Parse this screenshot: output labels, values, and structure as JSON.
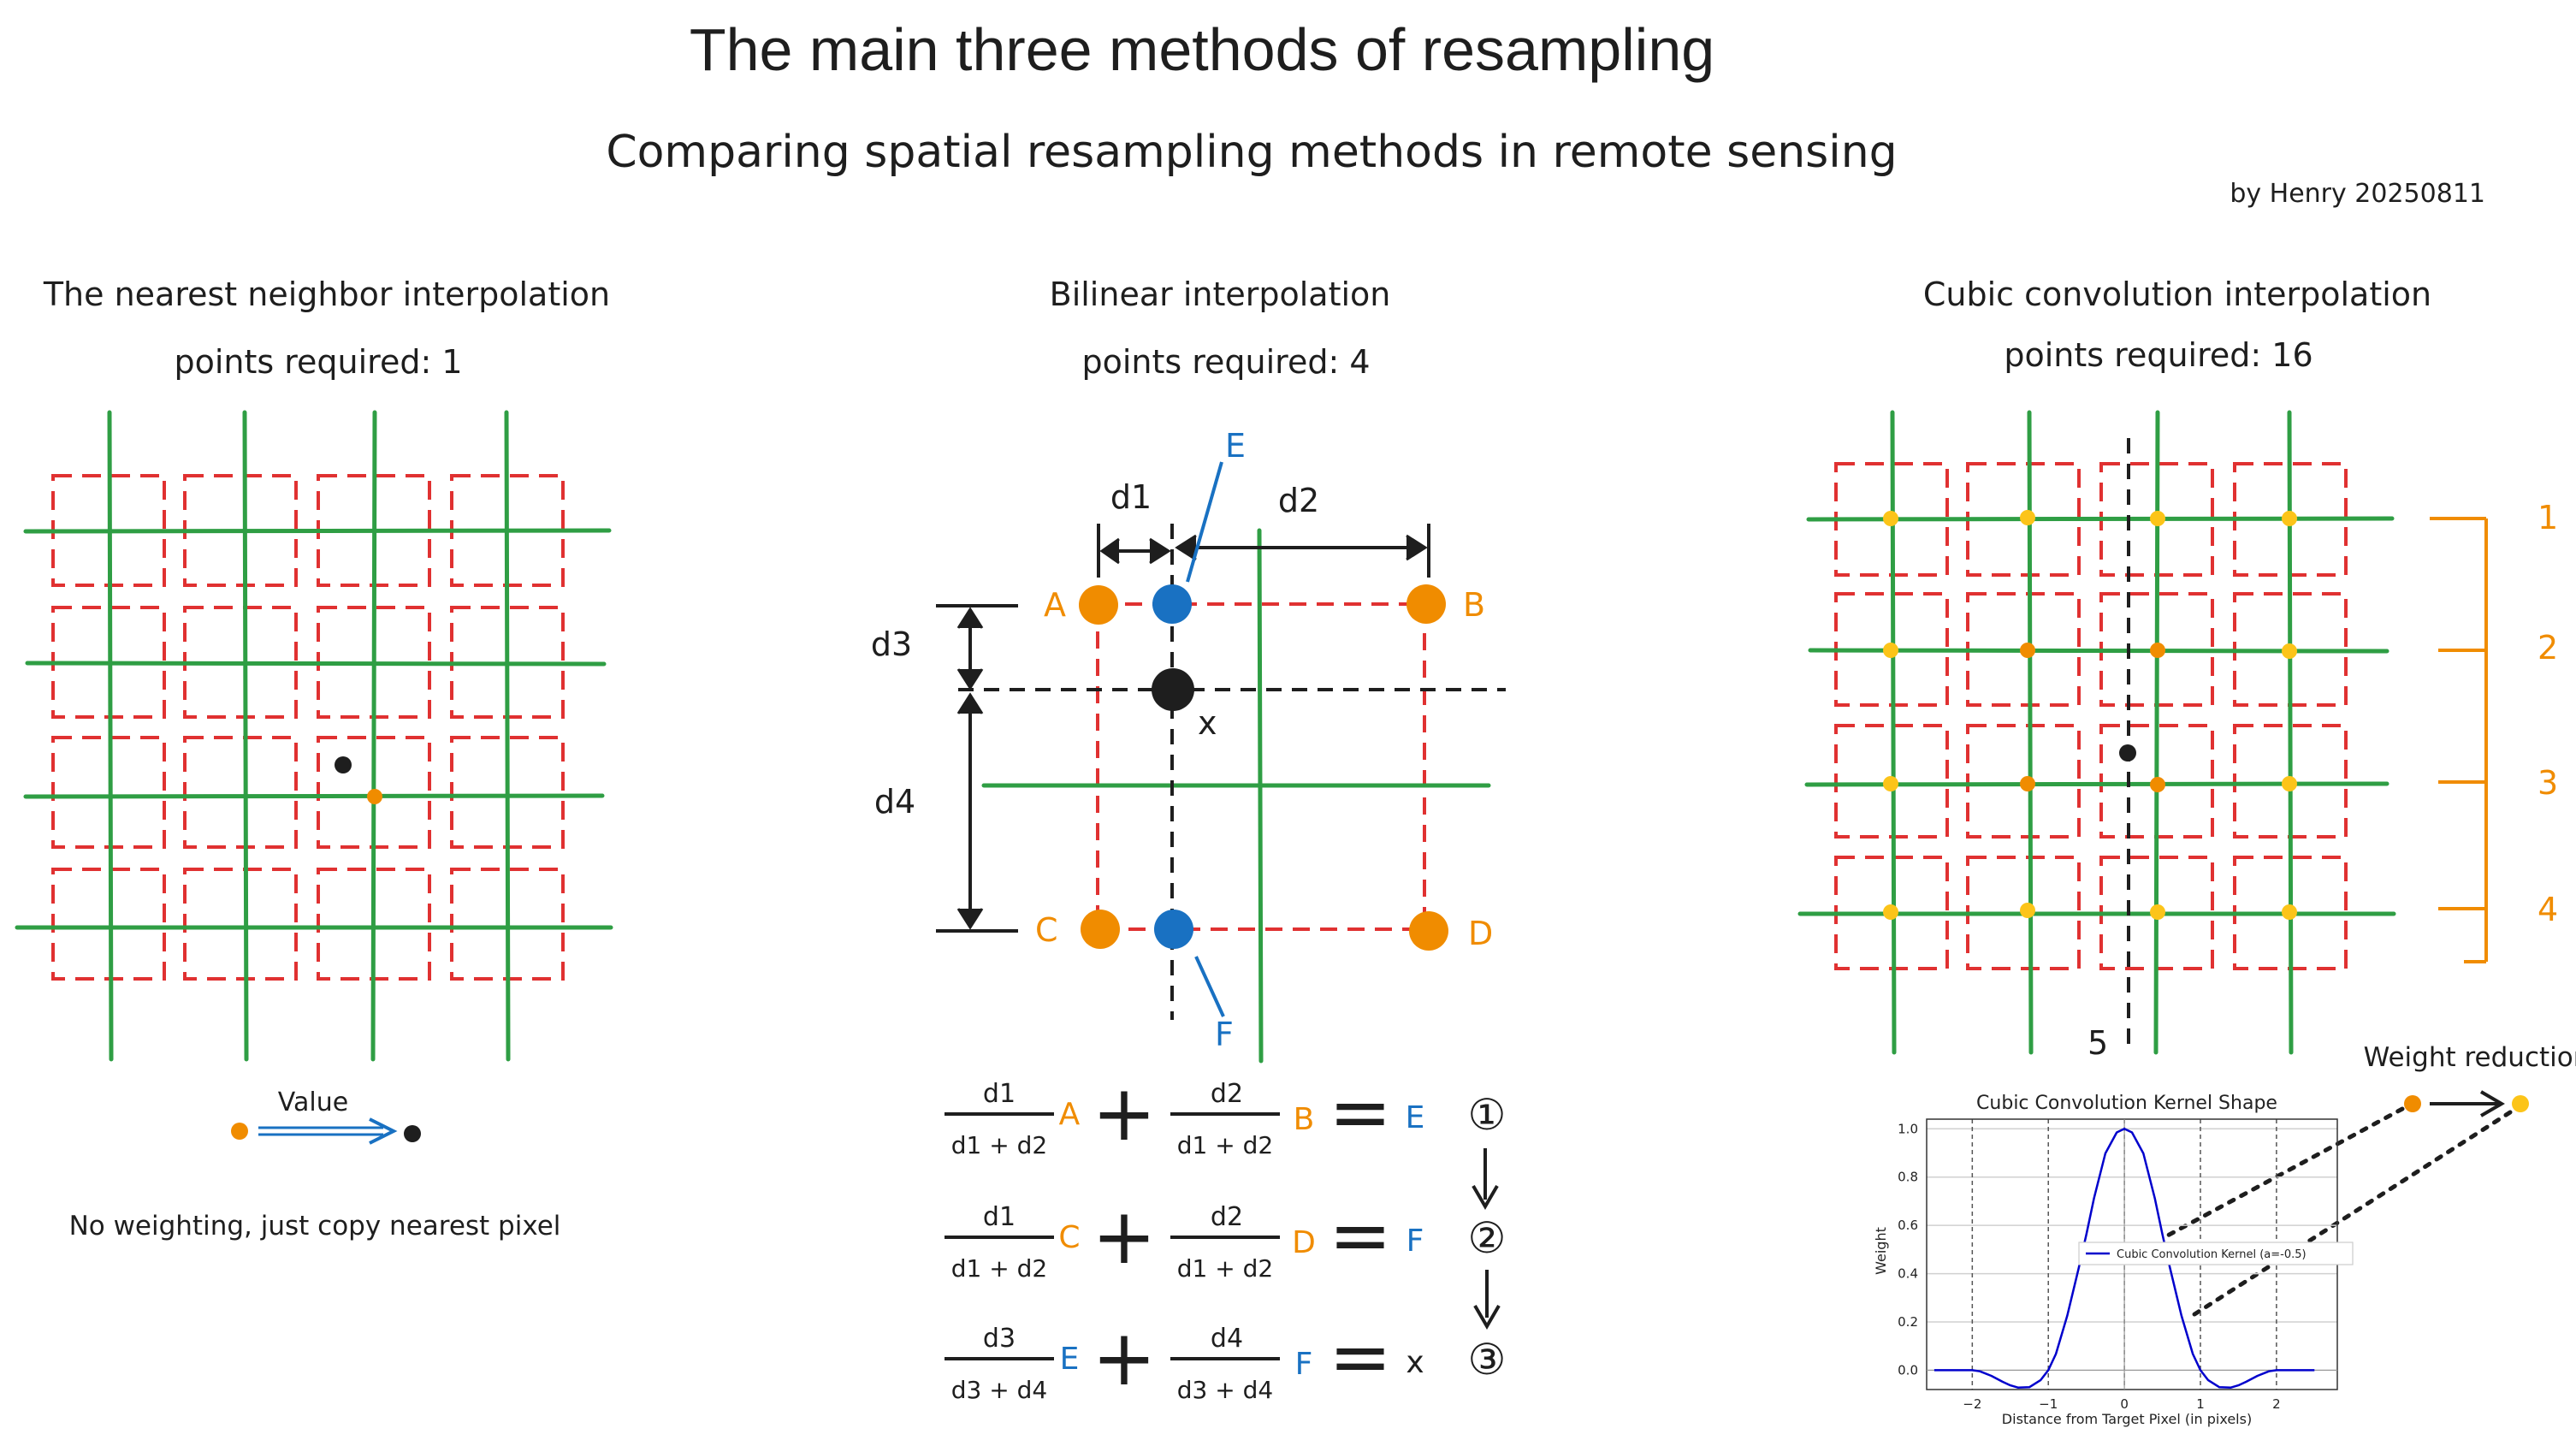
{
  "header": {
    "title": "The main three methods of resampling",
    "subtitle": "Comparing spatial resampling methods in remote sensing",
    "author": "by Henry 20250811"
  },
  "colors": {
    "grid_dash": "#e03131",
    "grid_line": "#2f9e44",
    "point_orange": "#f08c00",
    "point_blue": "#1971c2",
    "point_yellow": "#fcc419",
    "ink": "#1e1e1e",
    "curve": "#0000cc"
  },
  "nearest": {
    "heading": "The nearest neighbor interpolation",
    "points": "points required: 1",
    "value_label": "Value",
    "note": "No weighting, just copy nearest pixel"
  },
  "bilinear": {
    "heading": "Bilinear interpolation",
    "points": "points required: 4",
    "labels": {
      "A": "A",
      "B": "B",
      "C": "C",
      "D": "D",
      "E": "E",
      "F": "F",
      "x": "x",
      "d1": "d1",
      "d2": "d2",
      "d3": "d3",
      "d4": "d4"
    },
    "equations": [
      {
        "n1": "d1",
        "den1": "d1 + d2",
        "p1": "A",
        "n2": "d2",
        "den2": "d1 + d2",
        "p2": "B",
        "res": "E",
        "step": "①"
      },
      {
        "n1": "d1",
        "den1": "d1 + d2",
        "p1": "C",
        "n2": "d2",
        "den2": "d1 + d2",
        "p2": "D",
        "res": "F",
        "step": "②"
      },
      {
        "n1": "d3",
        "den1": "d3 + d4",
        "p1": "E",
        "n2": "d4",
        "den2": "d3 + d4",
        "p2": "F",
        "res": "x",
        "step": "③"
      }
    ],
    "plus": "+",
    "equals": "="
  },
  "cubic": {
    "heading": "Cubic convolution interpolation",
    "points": "points required: 16",
    "row_labels": [
      "1",
      "2",
      "3",
      "4"
    ],
    "column_label": "5",
    "weight_label": "Weight reduction"
  },
  "chart_data": {
    "type": "line",
    "title": "Cubic Convolution Kernel Shape",
    "xlabel": "Distance from Target Pixel (in pixels)",
    "ylabel": "Weight",
    "xlim": [
      -2.6,
      2.8
    ],
    "ylim": [
      -0.08,
      1.04
    ],
    "xticks": [
      -2,
      -1,
      0,
      1,
      2
    ],
    "xtick_labels": [
      "−2",
      "−1",
      "0",
      "1",
      "2"
    ],
    "yticks": [
      0.0,
      0.2,
      0.4,
      0.6,
      0.8,
      1.0
    ],
    "ytick_labels": [
      "0.0",
      "0.2",
      "0.4",
      "0.6",
      "0.8",
      "1.0"
    ],
    "grid": true,
    "legend_position": "center-right",
    "series": [
      {
        "name": "Cubic Convolution Kernel (a=-0.5)",
        "color": "#0000cc",
        "x": [
          -2.5,
          -2.0,
          -1.9,
          -1.75,
          -1.6,
          -1.5,
          -1.4,
          -1.25,
          -1.1,
          -1.0,
          -0.9,
          -0.75,
          -0.6,
          -0.5,
          -0.4,
          -0.25,
          -0.1,
          0,
          0.1,
          0.25,
          0.4,
          0.5,
          0.6,
          0.75,
          0.9,
          1.0,
          1.1,
          1.25,
          1.4,
          1.5,
          1.6,
          1.75,
          1.9,
          2.0,
          2.5
        ],
        "y": [
          0,
          0,
          -0.0045,
          -0.0234,
          -0.048,
          -0.0625,
          -0.072,
          -0.0703,
          -0.0405,
          0,
          0.0675,
          0.2266,
          0.424,
          0.5625,
          0.712,
          0.8984,
          0.985,
          1.0,
          0.985,
          0.8984,
          0.712,
          0.5625,
          0.424,
          0.2266,
          0.0675,
          0,
          -0.0405,
          -0.0703,
          -0.072,
          -0.0625,
          -0.048,
          -0.0234,
          -0.0045,
          0,
          0
        ]
      }
    ]
  }
}
